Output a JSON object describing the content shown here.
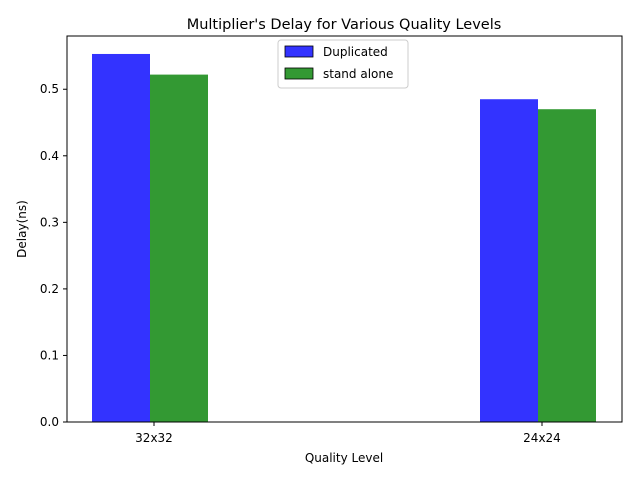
{
  "chart_data": {
    "type": "bar",
    "title": "Multiplier's Delay for Various Quality Levels",
    "xlabel": "Quality Level",
    "ylabel": "Delay(ns)",
    "categories": [
      "32x32",
      "24x24"
    ],
    "series": [
      {
        "name": "Duplicated",
        "values": [
          0.553,
          0.485
        ],
        "color": "#3333ff"
      },
      {
        "name": "stand alone",
        "values": [
          0.522,
          0.47
        ],
        "color": "#339933"
      }
    ],
    "ylim": [
      0,
      0.58
    ],
    "yticks": [
      0.0,
      0.1,
      0.2,
      0.3,
      0.4,
      0.5
    ],
    "ytick_labels": [
      "0.0",
      "0.1",
      "0.2",
      "0.3",
      "0.4",
      "0.5"
    ],
    "grid": false,
    "legend_position": "upper-center"
  }
}
